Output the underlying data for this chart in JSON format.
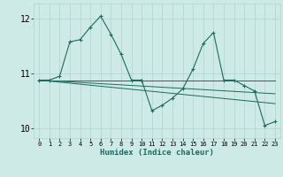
{
  "xlabel": "Humidex (Indice chaleur)",
  "bg_color": "#ceeae6",
  "grid_color": "#aed4cf",
  "line_color": "#1a6b5e",
  "xlim": [
    -0.5,
    23.5
  ],
  "ylim": [
    9.82,
    12.28
  ],
  "yticks": [
    10,
    11,
    12
  ],
  "xticks": [
    0,
    1,
    2,
    3,
    4,
    5,
    6,
    7,
    8,
    9,
    10,
    11,
    12,
    13,
    14,
    15,
    16,
    17,
    18,
    19,
    20,
    21,
    22,
    23
  ],
  "series": [
    {
      "x": [
        0,
        1,
        2,
        3,
        4,
        5,
        6,
        7,
        8,
        9,
        10
      ],
      "y": [
        10.88,
        10.88,
        10.95,
        11.58,
        11.62,
        11.85,
        12.05,
        11.72,
        11.35,
        10.88,
        10.88
      ],
      "marker": "+"
    },
    {
      "x": [
        0,
        23
      ],
      "y": [
        10.88,
        10.88
      ],
      "marker": null,
      "linewidth": 0.7
    },
    {
      "x": [
        0,
        23
      ],
      "y": [
        10.88,
        10.63
      ],
      "marker": null,
      "linewidth": 0.7
    },
    {
      "x": [
        0,
        23
      ],
      "y": [
        10.88,
        10.45
      ],
      "marker": null,
      "linewidth": 0.7
    },
    {
      "x": [
        10,
        11,
        12,
        13,
        14,
        15,
        16,
        17,
        18,
        19,
        20,
        21,
        22,
        23
      ],
      "y": [
        10.88,
        10.32,
        10.42,
        10.55,
        10.72,
        11.08,
        11.55,
        11.75,
        10.88,
        10.88,
        10.78,
        10.68,
        10.05,
        10.12
      ],
      "marker": "+"
    }
  ]
}
